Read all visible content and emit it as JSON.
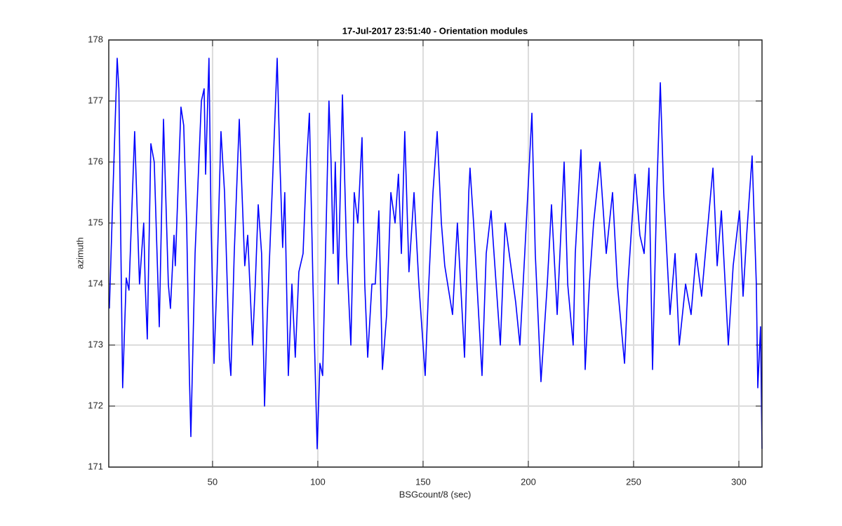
{
  "chart_data": {
    "type": "line",
    "title": "17-Jul-2017 23:51:40 - Orientation modules",
    "x_label": "BSGcount/8 (sec)",
    "y_label": "azimuth",
    "xlim": [
      0.7,
      311
    ],
    "ylim": [
      171,
      178
    ],
    "xticks": [
      50,
      100,
      150,
      200,
      250,
      300
    ],
    "yticks": [
      171,
      172,
      173,
      174,
      175,
      176,
      177,
      178
    ],
    "grid": true,
    "series": [
      {
        "color": "#0000ff",
        "x": [
          1,
          2.5,
          4.7,
          5.5,
          7.3,
          9,
          10.3,
          13,
          15.3,
          17.3,
          18,
          19,
          20.7,
          22.3,
          24.7,
          26.7,
          29,
          30,
          31.7,
          32.3,
          35,
          36.3,
          37.7,
          39,
          39.7,
          41.7,
          44.7,
          46,
          46.7,
          48.3,
          49.3,
          50.7,
          52,
          54,
          55.7,
          58,
          58.7,
          60.3,
          62.7,
          64,
          65.3,
          66.7,
          69,
          70.3,
          71.7,
          73.3,
          74.7,
          76,
          78.3,
          80.7,
          82,
          83.3,
          84.3,
          86,
          87.7,
          89.3,
          91,
          93,
          94.7,
          96,
          97.7,
          99.7,
          101,
          102.3,
          104,
          105.3,
          106.3,
          107.3,
          108.3,
          109.7,
          111.7,
          113.7,
          115.7,
          117.3,
          119,
          121,
          122.3,
          123.7,
          125.7,
          127.3,
          129,
          130.7,
          132.7,
          134.7,
          136.7,
          138.3,
          139.7,
          141.3,
          143.3,
          145.7,
          148,
          149,
          151,
          152.7,
          154.7,
          156.7,
          158.7,
          160.3,
          164,
          166.3,
          169.7,
          171.7,
          172.3,
          174,
          178,
          180,
          182.3,
          186.7,
          189,
          194,
          196,
          198.3,
          201.7,
          203.3,
          206,
          209,
          211,
          213.7,
          217,
          218.7,
          221.3,
          222.3,
          225,
          226.3,
          227,
          229,
          231,
          234,
          237,
          240,
          242.3,
          245.7,
          247.3,
          250.7,
          253,
          255,
          257.3,
          259,
          261,
          262.7,
          264.3,
          267.3,
          269.7,
          271.7,
          274.7,
          277.3,
          279.7,
          282.3,
          287.7,
          289.7,
          291.7,
          295,
          297.3,
          300.3,
          302,
          303.7,
          306.3,
          308.3,
          309,
          310.3,
          311
        ],
        "values": [
          173.6,
          175.3,
          177.7,
          177.2,
          172.3,
          174.1,
          173.9,
          176.5,
          174,
          175,
          174,
          173.1,
          176.3,
          176,
          173.3,
          176.7,
          174,
          173.6,
          174.8,
          174.3,
          176.9,
          176.6,
          175,
          172.5,
          171.5,
          174.5,
          177,
          177.2,
          175.8,
          177.7,
          175,
          172.7,
          174,
          176.5,
          175.5,
          172.8,
          172.5,
          174.5,
          176.7,
          175.5,
          174.3,
          174.8,
          173,
          174,
          175.3,
          174.5,
          172,
          173.5,
          175.5,
          177.7,
          176,
          174.6,
          175.5,
          172.5,
          174,
          172.8,
          174.2,
          174.5,
          176,
          176.8,
          174,
          171.3,
          172.7,
          172.5,
          175,
          177,
          176,
          174.5,
          176,
          174,
          177.1,
          174.5,
          173,
          175.5,
          175,
          176.4,
          174,
          172.8,
          174,
          174,
          175.2,
          172.6,
          173.5,
          175.5,
          175,
          175.8,
          174.5,
          176.5,
          174.2,
          175.5,
          174,
          173.5,
          172.5,
          174,
          175.5,
          176.5,
          175,
          174.3,
          173.5,
          175,
          172.8,
          175.5,
          175.9,
          175,
          172.5,
          174.5,
          175.2,
          173,
          175,
          173.7,
          173,
          174.5,
          176.8,
          174.5,
          172.4,
          174,
          175.3,
          173.5,
          176,
          174,
          173,
          174.5,
          176.2,
          174,
          172.6,
          174,
          175,
          176,
          174.5,
          175.5,
          174,
          172.7,
          174,
          175.8,
          174.8,
          174.5,
          175.9,
          172.6,
          175.5,
          177.3,
          175.5,
          173.5,
          174.5,
          173,
          174,
          173.5,
          174.5,
          173.8,
          175.9,
          174.3,
          175.2,
          173,
          174.3,
          175.2,
          173.8,
          174.8,
          176.1,
          174,
          172.3,
          173.3,
          171.3
        ]
      }
    ]
  }
}
